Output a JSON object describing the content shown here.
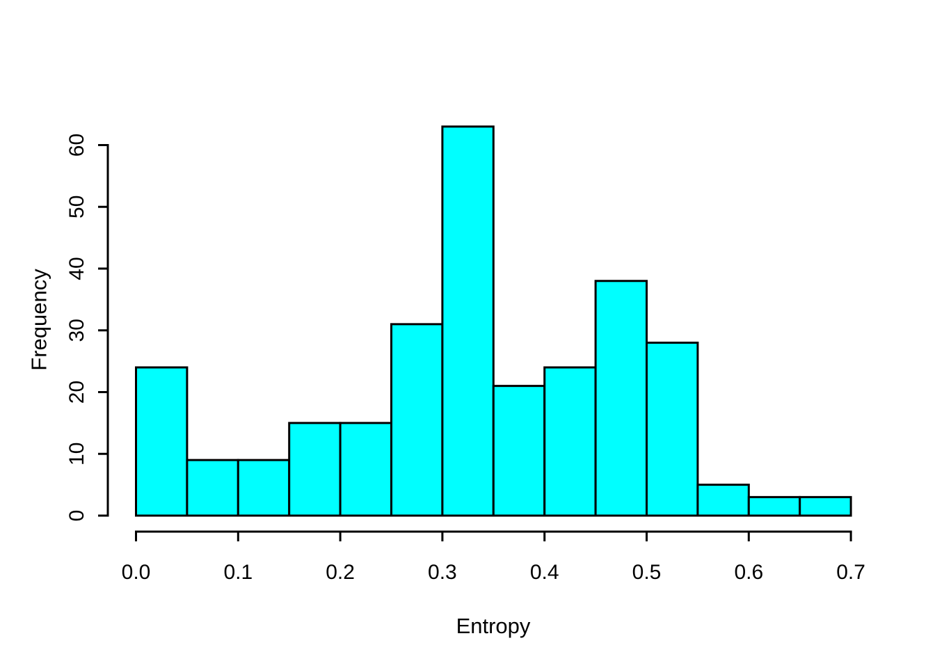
{
  "chart_data": {
    "type": "bar",
    "subtype": "histogram",
    "title": "",
    "xlabel": "Entropy",
    "ylabel": "Frequency",
    "bin_width": 0.05,
    "bin_edges": [
      0.0,
      0.05,
      0.1,
      0.15,
      0.2,
      0.25,
      0.3,
      0.35,
      0.4,
      0.45,
      0.5,
      0.55,
      0.6,
      0.65,
      0.7
    ],
    "counts": [
      24,
      9,
      9,
      15,
      15,
      31,
      63,
      21,
      24,
      38,
      28,
      5,
      3,
      3
    ],
    "x_tick_labels": [
      "0.0",
      "0.1",
      "0.2",
      "0.3",
      "0.4",
      "0.5",
      "0.6",
      "0.7"
    ],
    "x_tick_values": [
      0.0,
      0.1,
      0.2,
      0.3,
      0.4,
      0.5,
      0.6,
      0.7
    ],
    "y_tick_labels": [
      "0",
      "10",
      "20",
      "30",
      "40",
      "50",
      "60"
    ],
    "y_tick_values": [
      0,
      10,
      20,
      30,
      40,
      50,
      60
    ],
    "xlim": [
      0.0,
      0.7
    ],
    "ylim": [
      0,
      63
    ],
    "grid": "off",
    "legend": "none",
    "bar_fill_color": "#00FFFF",
    "bar_stroke_color": "#000000",
    "axis_color": "#000000",
    "text_color": "#000000",
    "background_color": "#FFFFFF"
  }
}
